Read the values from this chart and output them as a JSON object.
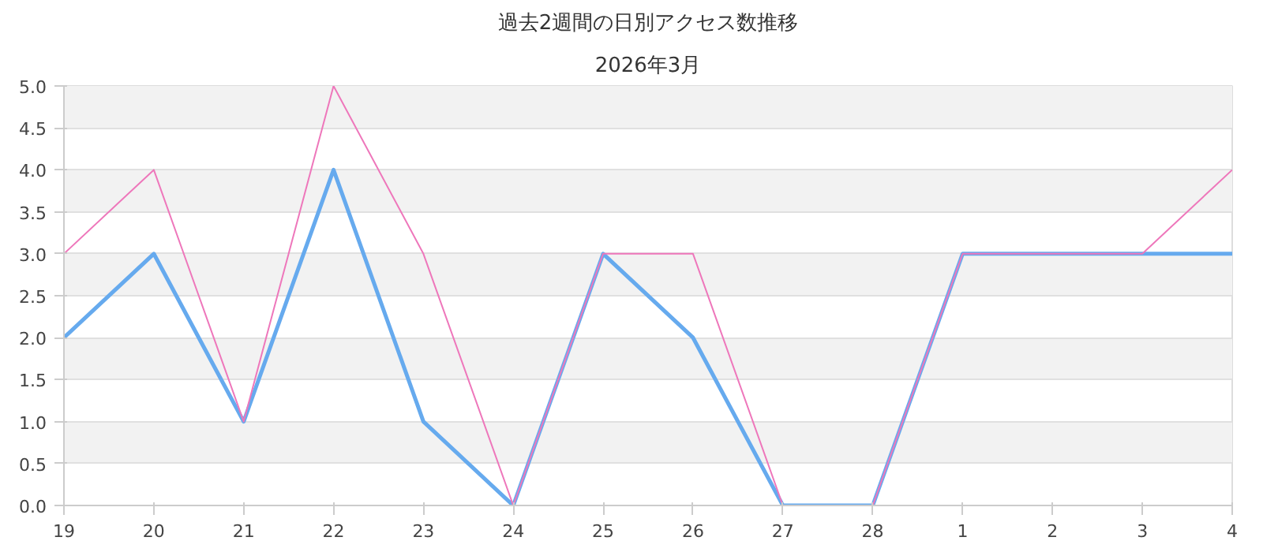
{
  "chart_data": {
    "type": "line",
    "title": "過去2週間の日別アクセス数推移",
    "subtitle": "2026年3月",
    "categories": [
      "19",
      "20",
      "21",
      "22",
      "23",
      "24",
      "25",
      "26",
      "27",
      "28",
      "1",
      "2",
      "3",
      "4"
    ],
    "series": [
      {
        "color": "#66aaee",
        "values": [
          2,
          3,
          1,
          4,
          1,
          0,
          3,
          2,
          0,
          0,
          3,
          3,
          3,
          3
        ]
      },
      {
        "color": "#ee77bb",
        "values": [
          3,
          4,
          1,
          5,
          3,
          0,
          3,
          3,
          0,
          0,
          3,
          3,
          3,
          4
        ]
      }
    ],
    "ylim": [
      0,
      5
    ],
    "yticks": [
      {
        "value": 0,
        "label": "0.0"
      },
      {
        "value": 0.5,
        "label": "0.5"
      },
      {
        "value": 1,
        "label": "1.0"
      },
      {
        "value": 1.5,
        "label": "1.5"
      },
      {
        "value": 2,
        "label": "2.0"
      },
      {
        "value": 2.5,
        "label": "2.5"
      },
      {
        "value": 3,
        "label": "3.0"
      },
      {
        "value": 3.5,
        "label": "3.5"
      },
      {
        "value": 4,
        "label": "4.0"
      },
      {
        "value": 4.5,
        "label": "4.5"
      },
      {
        "value": 5,
        "label": "5.0"
      }
    ],
    "grid": "y",
    "marker": "none",
    "line_style": "solid"
  }
}
